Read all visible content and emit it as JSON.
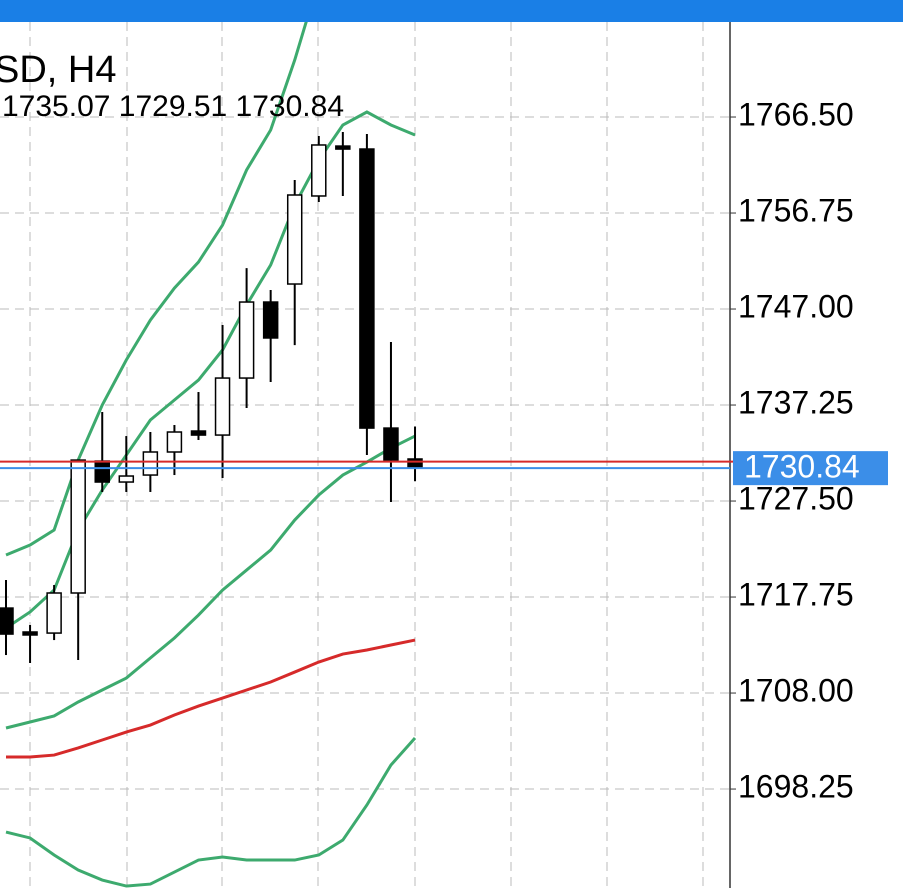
{
  "chart_data": {
    "type": "candlestick",
    "title": "SD, H4",
    "subtitle": "1735.07 1729.51 1730.84",
    "open": [
      1716.63,
      1714.2,
      1714.09,
      1718.16,
      1731.56,
      1729.43,
      1730.14,
      1732.48,
      1734.61,
      1734.2,
      1739.99,
      1747.71,
      1749.54,
      1758.48,
      1763.55,
      1763.25,
      1734.91,
      1731.77
    ],
    "high": [
      1719.48,
      1714.91,
      1718.97,
      1731.66,
      1736.54,
      1734.1,
      1734.51,
      1735.22,
      1738.57,
      1745.38,
      1751.16,
      1748.93,
      1760.1,
      1764.57,
      1764.98,
      1764.77,
      1743.65,
      1735.07
    ],
    "low": [
      1711.86,
      1711.05,
      1713.38,
      1711.35,
      1728.42,
      1728.42,
      1728.42,
      1730.14,
      1733.7,
      1729.84,
      1736.95,
      1739.59,
      1743.34,
      1757.87,
      1758.48,
      1732.17,
      1727.4,
      1729.51
    ],
    "close": [
      1713.99,
      1714.09,
      1718.16,
      1731.66,
      1729.43,
      1730.04,
      1732.48,
      1734.51,
      1734.2,
      1739.99,
      1747.71,
      1744.06,
      1758.58,
      1763.66,
      1763.25,
      1734.91,
      1731.66,
      1730.84
    ],
    "bull_color": "#ffffff",
    "bear_color": "#000000",
    "series": [
      {
        "color": "#3daa6e",
        "values": [
          1722.02,
          1723.03,
          1724.56,
          1731.66,
          1737.25,
          1741.82,
          1745.88,
          1749.13,
          1751.77,
          1755.53,
          1761.12,
          1765.18,
          1772.29,
          1780.41,
          null,
          null,
          null,
          null
        ]
      },
      {
        "color": "#3daa6e",
        "values": [
          1714.6,
          1716.23,
          1718.46,
          1724.56,
          1728.62,
          1732.17,
          1735.73,
          1737.76,
          1739.79,
          1742.84,
          1747.41,
          1751.47,
          1757.56,
          1762.13,
          1765.69,
          1767.01,
          1765.69,
          1764.67
        ]
      },
      {
        "color": "#3daa6e",
        "values": [
          1704.45,
          1705.06,
          1705.67,
          1707.09,
          1708.31,
          1709.52,
          1711.56,
          1713.59,
          1715.92,
          1718.46,
          1720.49,
          1722.52,
          1725.57,
          1728.11,
          1730.14,
          1731.46,
          1732.88,
          1734.1
        ]
      },
      {
        "color": "#d62a2a",
        "values": [
          1701.5,
          1701.5,
          1701.7,
          1702.42,
          1703.23,
          1704.04,
          1704.75,
          1705.77,
          1706.68,
          1707.49,
          1708.31,
          1709.12,
          1710.13,
          1711.15,
          1711.96,
          1712.37,
          1712.88,
          1713.38
        ]
      },
      {
        "color": "#3daa6e",
        "values": [
          1693.88,
          1693.28,
          1691.55,
          1690.03,
          1689.01,
          1688.4,
          1688.6,
          1689.82,
          1691.04,
          1691.35,
          1691.04,
          1691.04,
          1691.04,
          1691.55,
          1693.07,
          1696.63,
          1700.69,
          1703.43
        ]
      }
    ],
    "ylim": [
      1688.2,
      1776.15
    ],
    "yticks": [
      {
        "value": 1766.5,
        "label": "1766.50"
      },
      1756.75,
      {
        "value": 1747,
        "label": "1747.00"
      },
      1737.25,
      {
        "value": 1727.5,
        "label": "1727.50"
      },
      1717.75,
      {
        "value": 1708,
        "label": "1708.00"
      },
      1698.25
    ],
    "grid": true,
    "current_price": 1730.84,
    "current_color": "#3b8ee8",
    "ask_price": 1731.2,
    "ask_color": "#d62a2a"
  }
}
